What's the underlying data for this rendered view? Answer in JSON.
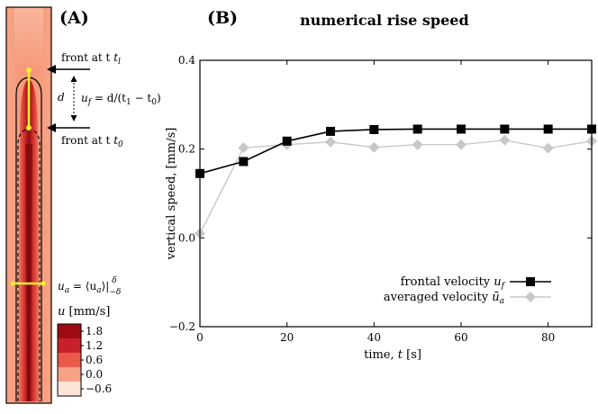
{
  "panel_a": {
    "label": "(A)",
    "front_t1": "front at t",
    "front_t1_sub": "l",
    "front_t0": "front at t",
    "front_t0_sub": "0",
    "d_label": "d",
    "uf_formula": "u",
    "uf_formula_sub": "f",
    "uf_formula_rest": " = d/(t",
    "uf_formula_t1": "1",
    "uf_formula_mid": " − t",
    "uf_formula_t0": "0",
    "uf_formula_end": ")",
    "ua_formula": "u",
    "ua_formula_sub": "a",
    "ua_formula_rest": " = ⟨u",
    "ua_formula_sub2": "a",
    "ua_formula_end": "⟩|",
    "ua_formula_lims": "−δ",
    "ua_formula_sup": "δ",
    "colorbar_title": "u",
    "colorbar_units": " [mm/s]",
    "colorbar_ticks": [
      "1.8",
      "1.2",
      "0.6",
      "0.0",
      "−0.6"
    ],
    "colorbar_colors": [
      "#9e0b13",
      "#c8202a",
      "#ea5a4a",
      "#f7a187",
      "#fde4d6"
    ]
  },
  "panel_b": {
    "label": "(B)"
  },
  "chart_data": {
    "type": "line",
    "title": "numerical rise speed",
    "xlabel": "time,",
    "xlabel_var": "t",
    "xlabel_unit": " [s]",
    "ylabel": "vertical speed, [mm/s]",
    "xlim": [
      0,
      90
    ],
    "ylim": [
      -0.2,
      0.4
    ],
    "xticks": [
      0,
      20,
      40,
      60,
      80
    ],
    "yticks": [
      -0.2,
      0.0,
      0.2,
      0.4
    ],
    "xtick_labels": [
      "0",
      "20",
      "40",
      "60",
      "80"
    ],
    "ytick_labels": [
      "−0.2",
      "0.0",
      "0.2",
      "0.4"
    ],
    "legend_position": "lower-right",
    "series": [
      {
        "name": "frontal velocity",
        "name_var": "u",
        "name_sub": "f",
        "color": "#000000",
        "marker": "square",
        "x": [
          0,
          10,
          20,
          30,
          40,
          50,
          60,
          70,
          80,
          90
        ],
        "values": [
          0.145,
          0.172,
          0.218,
          0.24,
          0.244,
          0.245,
          0.245,
          0.245,
          0.245,
          0.245
        ]
      },
      {
        "name": "averaged velocity",
        "name_var": "ū",
        "name_sub": "a",
        "color": "#c8c8c8",
        "marker": "diamond",
        "x": [
          0,
          10,
          20,
          30,
          40,
          50,
          60,
          70,
          80,
          90
        ],
        "values": [
          0.01,
          0.203,
          0.21,
          0.216,
          0.204,
          0.21,
          0.21,
          0.22,
          0.202,
          0.218
        ]
      }
    ]
  }
}
